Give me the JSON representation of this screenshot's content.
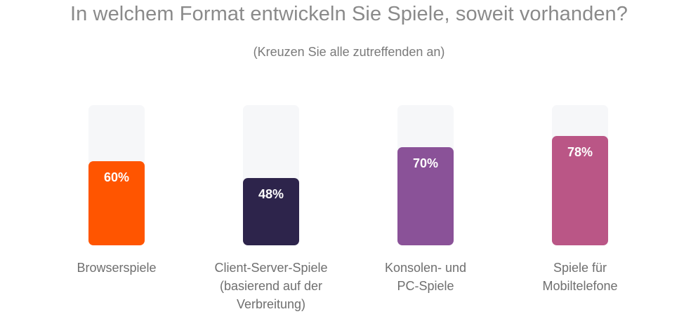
{
  "chart_data": {
    "type": "bar",
    "title": "In welchem Format entwickeln Sie Spiele, soweit vorhanden?",
    "subtitle": "(Kreuzen Sie alle zutreffenden an)",
    "categories": [
      [
        "Browserspiele"
      ],
      [
        "Client-Server-Spiele",
        "(basierend auf der",
        "Verbreitung)"
      ],
      [
        "Konsolen- und",
        "PC-Spiele"
      ],
      [
        "Spiele für",
        "Mobiltelefone"
      ]
    ],
    "values": [
      60,
      48,
      70,
      78
    ],
    "value_labels": [
      "60%",
      "48%",
      "70%",
      "78%"
    ],
    "colors": [
      "#FF5500",
      "#2D244B",
      "#8A5298",
      "#BA5686"
    ],
    "track_color": "#F6F7F9",
    "ylim": [
      0,
      100
    ],
    "grid": false,
    "legend": "none"
  }
}
